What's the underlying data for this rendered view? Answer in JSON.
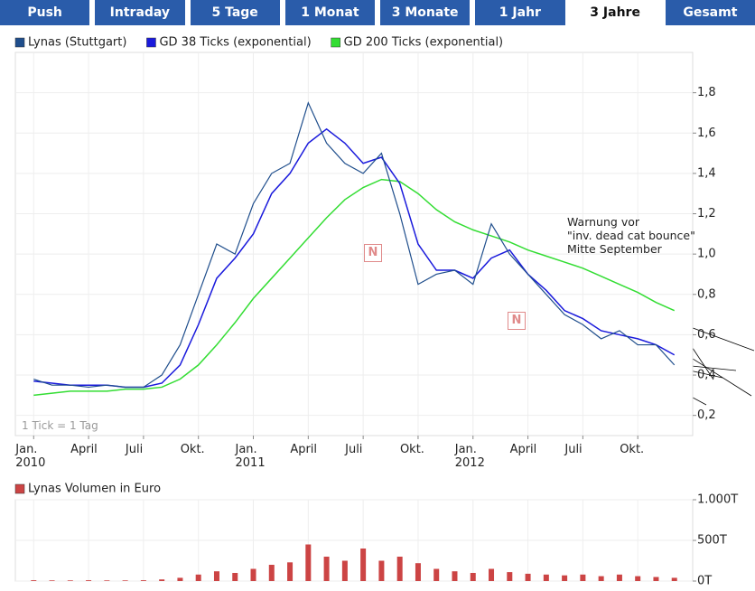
{
  "tabs": [
    "Push",
    "Intraday",
    "5 Tage",
    "1 Monat",
    "3 Monate",
    "1 Jahr",
    "3 Jahre",
    "Gesamt"
  ],
  "active_tab": 6,
  "chart_data": [
    {
      "type": "line",
      "x": [
        "2010-01",
        "2010-02",
        "2010-03",
        "2010-04",
        "2010-05",
        "2010-06",
        "2010-07",
        "2010-08",
        "2010-09",
        "2010-10",
        "2010-11",
        "2010-12",
        "2011-01",
        "2011-02",
        "2011-03",
        "2011-04",
        "2011-05",
        "2011-06",
        "2011-07",
        "2011-08",
        "2011-09",
        "2011-10",
        "2011-11",
        "2011-12",
        "2012-01",
        "2012-02",
        "2012-03",
        "2012-04",
        "2012-05",
        "2012-06",
        "2012-07",
        "2012-08",
        "2012-09",
        "2012-10",
        "2012-11",
        "2012-12"
      ],
      "series": [
        {
          "name": "Lynas (Stuttgart)",
          "color": "#1f4e8c",
          "values": [
            0.38,
            0.35,
            0.35,
            0.34,
            0.35,
            0.34,
            0.34,
            0.4,
            0.55,
            0.8,
            1.05,
            1.0,
            1.25,
            1.4,
            1.45,
            1.75,
            1.55,
            1.45,
            1.4,
            1.5,
            1.2,
            0.85,
            0.9,
            0.92,
            0.85,
            1.15,
            1.0,
            0.9,
            0.8,
            0.7,
            0.65,
            0.58,
            0.62,
            0.55,
            0.55,
            0.45
          ]
        },
        {
          "name": "GD 38 Ticks (exponential)",
          "color": "#1a1adc",
          "values": [
            0.37,
            0.36,
            0.35,
            0.35,
            0.35,
            0.34,
            0.34,
            0.36,
            0.45,
            0.65,
            0.88,
            0.98,
            1.1,
            1.3,
            1.4,
            1.55,
            1.62,
            1.55,
            1.45,
            1.48,
            1.35,
            1.05,
            0.92,
            0.92,
            0.88,
            0.98,
            1.02,
            0.9,
            0.82,
            0.72,
            0.68,
            0.62,
            0.6,
            0.58,
            0.55,
            0.5
          ]
        },
        {
          "name": "GD 200 Ticks (exponential)",
          "color": "#33dd33",
          "values": [
            0.3,
            0.31,
            0.32,
            0.32,
            0.32,
            0.33,
            0.33,
            0.34,
            0.38,
            0.45,
            0.55,
            0.66,
            0.78,
            0.88,
            0.98,
            1.08,
            1.18,
            1.27,
            1.33,
            1.37,
            1.36,
            1.3,
            1.22,
            1.16,
            1.12,
            1.09,
            1.06,
            1.02,
            0.99,
            0.96,
            0.93,
            0.89,
            0.85,
            0.81,
            0.76,
            0.72
          ]
        }
      ],
      "xlim": [
        "2009-12",
        "2012-12"
      ],
      "xticks": [
        {
          "value": "2010-01",
          "label": "Jan.\n2010"
        },
        {
          "value": "2010-04",
          "label": "April"
        },
        {
          "value": "2010-07",
          "label": "Juli"
        },
        {
          "value": "2010-10",
          "label": "Okt."
        },
        {
          "value": "2011-01",
          "label": "Jan.\n2011"
        },
        {
          "value": "2011-04",
          "label": "April"
        },
        {
          "value": "2011-07",
          "label": "Juli"
        },
        {
          "value": "2011-10",
          "label": "Okt."
        },
        {
          "value": "2012-01",
          "label": "Jan.\n2012"
        },
        {
          "value": "2012-04",
          "label": "April"
        },
        {
          "value": "2012-07",
          "label": "Juli"
        },
        {
          "value": "2012-10",
          "label": "Okt."
        }
      ],
      "ylim": [
        0.1,
        2.0
      ],
      "yticks": [
        {
          "value": 0.2,
          "label": "0,2"
        },
        {
          "value": 0.4,
          "label": "0,4"
        },
        {
          "value": 0.6,
          "label": "0,6"
        },
        {
          "value": 0.8,
          "label": "0,8"
        },
        {
          "value": 1.0,
          "label": "1,0"
        },
        {
          "value": 1.2,
          "label": "1,2"
        },
        {
          "value": 1.4,
          "label": "1,4"
        },
        {
          "value": 1.6,
          "label": "1,6"
        },
        {
          "value": 1.8,
          "label": "1,8"
        }
      ],
      "grid": true,
      "note": "1 Tick = 1 Tag",
      "annotation": "Warnung vor\n\"inv. dead cat bounce\"\nMitte September",
      "markers": [
        "N",
        "N"
      ]
    },
    {
      "type": "bar",
      "x": [
        "2010-01",
        "2010-02",
        "2010-03",
        "2010-04",
        "2010-05",
        "2010-06",
        "2010-07",
        "2010-08",
        "2010-09",
        "2010-10",
        "2010-11",
        "2010-12",
        "2011-01",
        "2011-02",
        "2011-03",
        "2011-04",
        "2011-05",
        "2011-06",
        "2011-07",
        "2011-08",
        "2011-09",
        "2011-10",
        "2011-11",
        "2011-12",
        "2012-01",
        "2012-02",
        "2012-03",
        "2012-04",
        "2012-05",
        "2012-06",
        "2012-07",
        "2012-08",
        "2012-09",
        "2012-10",
        "2012-11",
        "2012-12"
      ],
      "series": [
        {
          "name": "Lynas Volumen in Euro",
          "color": "#cc4444",
          "values": [
            10,
            8,
            8,
            10,
            8,
            8,
            10,
            20,
            40,
            80,
            120,
            100,
            150,
            200,
            230,
            450,
            300,
            250,
            400,
            250,
            300,
            220,
            150,
            120,
            100,
            150,
            110,
            90,
            80,
            70,
            80,
            60,
            80,
            60,
            50,
            40
          ]
        }
      ],
      "xlim": [
        "2009-12",
        "2012-12"
      ],
      "ylim": [
        0,
        1000
      ],
      "yticks": [
        {
          "value": 0,
          "label": "0T"
        },
        {
          "value": 500,
          "label": "500T"
        },
        {
          "value": 1000,
          "label": "1.000T"
        }
      ],
      "grid": true
    }
  ]
}
